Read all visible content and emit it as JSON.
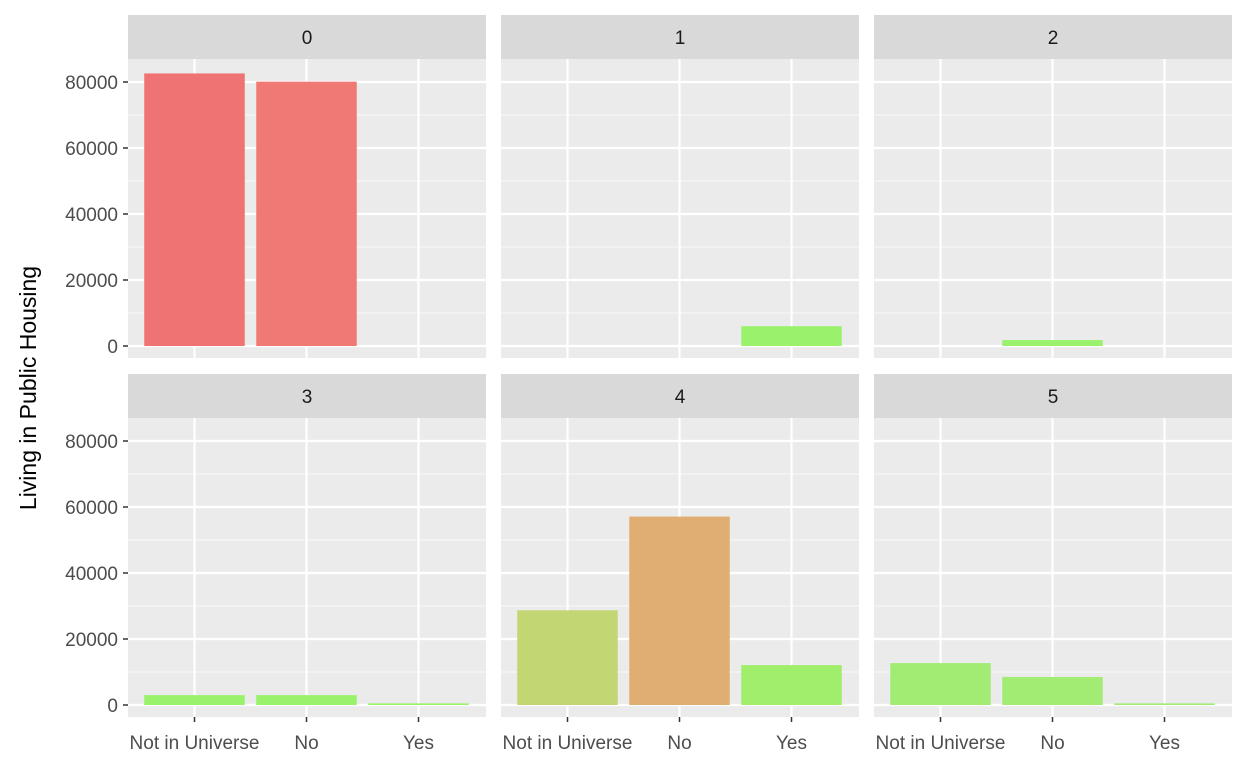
{
  "chart_data": {
    "type": "bar",
    "ylabel": "Living in Public Housing",
    "xlabel": "",
    "categories": [
      "Not in Universe",
      "No",
      "Yes"
    ],
    "ylim": [
      0,
      90000
    ],
    "yticks": [
      0,
      20000,
      40000,
      60000,
      80000
    ],
    "ytick_labels": [
      "0",
      "20000",
      "40000",
      "60000",
      "80000"
    ],
    "grid": true,
    "facets": [
      {
        "label": "0",
        "values": [
          82600,
          80100,
          0
        ],
        "colors": [
          "#f07373",
          "#f07a73",
          "#f07373"
        ]
      },
      {
        "label": "1",
        "values": [
          0,
          0,
          6000
        ],
        "colors": [
          "#9af26c",
          "#9af26c",
          "#9af26c"
        ]
      },
      {
        "label": "2",
        "values": [
          0,
          1800,
          0
        ],
        "colors": [
          "#9af26c",
          "#9af26c",
          "#9af26c"
        ]
      },
      {
        "label": "3",
        "values": [
          3000,
          3000,
          500
        ],
        "colors": [
          "#9af26c",
          "#9af26c",
          "#9af26c"
        ]
      },
      {
        "label": "4",
        "values": [
          28700,
          57100,
          12100
        ],
        "colors": [
          "#c2d673",
          "#e0ae73",
          "#a0ee6c"
        ]
      },
      {
        "label": "5",
        "values": [
          12700,
          8500,
          500
        ],
        "colors": [
          "#a2ec74",
          "#a2ec74",
          "#a2ec74"
        ]
      }
    ]
  }
}
